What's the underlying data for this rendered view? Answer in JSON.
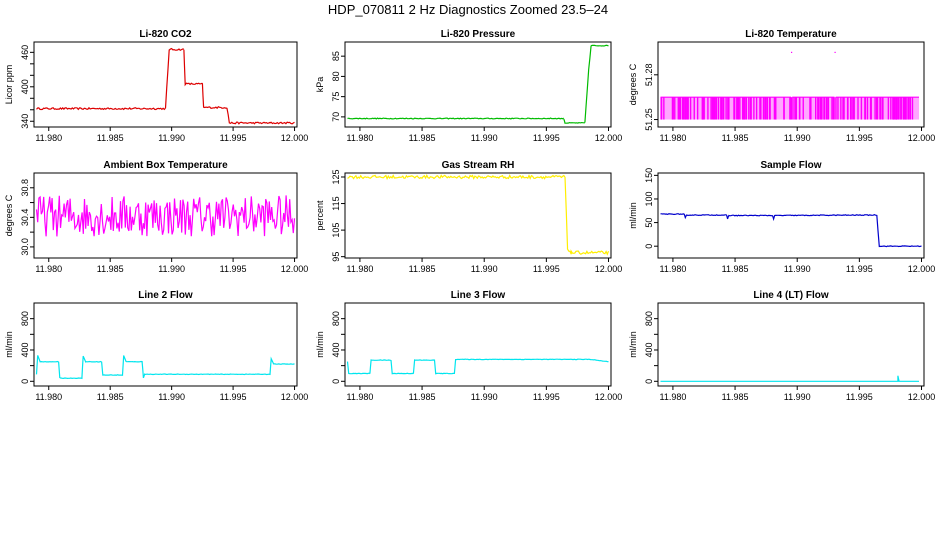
{
  "figure": {
    "title": "HDP_070811  2 Hz Diagnostics Zoomed 23.5–24"
  },
  "chart_data": [
    {
      "type": "line",
      "title": "Li-820 CO2",
      "ylabel": "Licor ppm",
      "color": "#dd0000",
      "xlim": [
        11.9788,
        12.0002
      ],
      "ylim": [
        330,
        478
      ],
      "xticks": [
        11.98,
        11.985,
        11.99,
        11.995,
        12.0
      ],
      "xtick_labels": [
        "11.980",
        "11.985",
        "11.990",
        "11.995",
        "12.000"
      ],
      "yticks": [
        340,
        400,
        460
      ],
      "ytick_labels": [
        "340",
        "400",
        "460"
      ],
      "yticks_minor": [
        360,
        380,
        420,
        440
      ],
      "segments": [
        [
          [
            11.979,
            362
          ],
          [
            11.9895,
            362
          ]
        ],
        [
          [
            11.9895,
            362
          ],
          [
            11.9898,
            465
          ],
          [
            11.991,
            465
          ]
        ],
        [
          [
            11.991,
            465
          ],
          [
            11.9911,
            405
          ],
          [
            11.9925,
            405
          ]
        ],
        [
          [
            11.9925,
            405
          ],
          [
            11.9926,
            364
          ],
          [
            11.9945,
            364
          ]
        ],
        [
          [
            11.9945,
            364
          ],
          [
            11.9947,
            337
          ],
          [
            11.9979,
            337
          ]
        ],
        [
          [
            11.9979,
            337
          ],
          [
            11.998,
            337
          ],
          [
            12.0,
            337
          ]
        ]
      ],
      "noise": 1.5
    },
    {
      "type": "line",
      "title": "Li-820 Pressure",
      "ylabel": "kPa",
      "color": "#00bb00",
      "xlim": [
        11.9788,
        12.0002
      ],
      "ylim": [
        67.5,
        88.5
      ],
      "xticks": [
        11.98,
        11.985,
        11.99,
        11.995,
        12.0
      ],
      "xtick_labels": [
        "11.980",
        "11.985",
        "11.990",
        "11.995",
        "12.000"
      ],
      "yticks": [
        70,
        75,
        80,
        85
      ],
      "ytick_labels": [
        "70",
        "75",
        "80",
        "85"
      ],
      "segments": [
        [
          [
            11.979,
            69.6
          ],
          [
            11.9964,
            69.6
          ]
        ],
        [
          [
            11.9964,
            69.6
          ],
          [
            11.9965,
            68.5
          ],
          [
            11.9981,
            68.5
          ]
        ],
        [
          [
            11.9981,
            68.5
          ],
          [
            11.9984,
            81.5
          ],
          [
            11.9986,
            87.6
          ],
          [
            12.0,
            87.6
          ]
        ]
      ],
      "noise": 0.1
    },
    {
      "type": "line",
      "title": "Li-820 Temperature",
      "ylabel": "degrees C",
      "color": "#ff00ff",
      "xlim": [
        11.9788,
        12.0002
      ],
      "ylim": [
        51.245,
        51.302
      ],
      "xticks": [
        11.98,
        11.985,
        11.99,
        11.995,
        12.0
      ],
      "xtick_labels": [
        "11.980",
        "11.985",
        "11.990",
        "11.995",
        "12.000"
      ],
      "yticks": [
        51.25,
        51.28
      ],
      "ytick_labels": [
        "51.25",
        "51.28"
      ],
      "segments": [
        [
          [
            11.979,
            51.265
          ],
          [
            11.9895,
            51.265
          ]
        ],
        [
          [
            11.9895,
            51.295
          ],
          [
            11.9896,
            51.295
          ]
        ],
        [
          [
            11.9896,
            51.265
          ],
          [
            11.993,
            51.265
          ]
        ],
        [
          [
            11.993,
            51.295
          ],
          [
            11.9931,
            51.295
          ]
        ],
        [
          [
            11.9931,
            51.265
          ],
          [
            11.9998,
            51.265
          ]
        ]
      ],
      "noise": 0.0
    },
    {
      "type": "line",
      "title": "Ambient Box Temperature",
      "ylabel": "degrees C",
      "color": "#ff00ff",
      "xlim": [
        11.9788,
        12.0002
      ],
      "ylim": [
        29.85,
        31.0
      ],
      "xticks": [
        11.98,
        11.985,
        11.99,
        11.995,
        12.0
      ],
      "xtick_labels": [
        "11.980",
        "11.985",
        "11.990",
        "11.995",
        "12.000"
      ],
      "yticks": [
        30.0,
        30.4,
        30.8
      ],
      "ytick_labels": [
        "30.0",
        "30.4",
        "30.8"
      ],
      "yticks_minor": [
        30.2,
        30.6
      ],
      "segments": [
        [
          [
            11.979,
            30.42
          ],
          [
            12.0,
            30.42
          ]
        ]
      ],
      "noise": 0.28
    },
    {
      "type": "line",
      "title": "Gas Stream RH",
      "ylabel": "percent",
      "color": "#ffee00",
      "xlim": [
        11.9788,
        12.0002
      ],
      "ylim": [
        94.5,
        126.5
      ],
      "xticks": [
        11.98,
        11.985,
        11.99,
        11.995,
        12.0
      ],
      "xtick_labels": [
        "11.980",
        "11.985",
        "11.990",
        "11.995",
        "12.000"
      ],
      "yticks": [
        95,
        105,
        115,
        125
      ],
      "ytick_labels": [
        "95",
        "105",
        "115",
        "125"
      ],
      "segments": [
        [
          [
            11.979,
            125
          ],
          [
            11.9965,
            125
          ]
        ],
        [
          [
            11.9965,
            125
          ],
          [
            11.9967,
            98
          ],
          [
            11.997,
            96.5
          ],
          [
            12.0,
            96.5
          ]
        ]
      ],
      "noise": 0.6
    },
    {
      "type": "line",
      "title": "Sample Flow",
      "ylabel": "ml/min",
      "color": "#0000cc",
      "xlim": [
        11.9788,
        12.0002
      ],
      "ylim": [
        -25,
        155
      ],
      "xticks": [
        11.98,
        11.985,
        11.99,
        11.995,
        12.0
      ],
      "xtick_labels": [
        "11.980",
        "11.985",
        "11.990",
        "11.995",
        "12.000"
      ],
      "yticks": [
        0,
        50,
        100,
        150
      ],
      "ytick_labels": [
        "0",
        "50",
        "100",
        "150"
      ],
      "segments": [
        [
          [
            11.979,
            68
          ],
          [
            11.9809,
            68
          ],
          [
            11.981,
            60
          ],
          [
            11.9811,
            66
          ],
          [
            11.9843,
            66
          ],
          [
            11.9844,
            58
          ],
          [
            11.9845,
            65
          ],
          [
            11.988,
            65
          ],
          [
            11.9881,
            58
          ],
          [
            11.9882,
            65
          ],
          [
            11.9964,
            66
          ]
        ],
        [
          [
            11.9964,
            66
          ],
          [
            11.9966,
            0
          ],
          [
            12.0,
            0
          ]
        ]
      ],
      "noise": 0.8
    },
    {
      "type": "line",
      "title": "Line 2 Flow",
      "ylabel": "ml/min",
      "color": "#00e5ee",
      "xlim": [
        11.9788,
        12.0002
      ],
      "ylim": [
        -60,
        1000
      ],
      "xticks": [
        11.98,
        11.985,
        11.99,
        11.995,
        12.0
      ],
      "xtick_labels": [
        "11.980",
        "11.985",
        "11.990",
        "11.995",
        "12.000"
      ],
      "yticks": [
        0,
        400,
        800
      ],
      "ytick_labels": [
        "0",
        "400",
        "800"
      ],
      "yticks_minor": [
        200,
        600
      ],
      "segments": [
        [
          [
            11.979,
            90
          ],
          [
            11.9791,
            330
          ],
          [
            11.9793,
            250
          ],
          [
            11.9808,
            250
          ],
          [
            11.9809,
            40
          ],
          [
            11.9827,
            40
          ],
          [
            11.9828,
            320
          ],
          [
            11.983,
            250
          ],
          [
            11.9843,
            250
          ],
          [
            11.9844,
            80
          ],
          [
            11.986,
            80
          ],
          [
            11.9861,
            330
          ],
          [
            11.9863,
            250
          ],
          [
            11.9876,
            250
          ],
          [
            11.9877,
            45
          ],
          [
            11.9878,
            90
          ],
          [
            11.998,
            90
          ],
          [
            11.9981,
            290
          ],
          [
            11.9983,
            220
          ],
          [
            12.0,
            220
          ]
        ]
      ],
      "noise": 3
    },
    {
      "type": "line",
      "title": "Line 3 Flow",
      "ylabel": "ml/min",
      "color": "#00e5ee",
      "xlim": [
        11.9788,
        12.0002
      ],
      "ylim": [
        -60,
        1000
      ],
      "xticks": [
        11.98,
        11.985,
        11.99,
        11.995,
        12.0
      ],
      "xtick_labels": [
        "11.980",
        "11.985",
        "11.990",
        "11.995",
        "12.000"
      ],
      "yticks": [
        0,
        400,
        800
      ],
      "ytick_labels": [
        "0",
        "400",
        "800"
      ],
      "yticks_minor": [
        200,
        600
      ],
      "segments": [
        [
          [
            11.979,
            250
          ],
          [
            11.9791,
            100
          ],
          [
            11.9808,
            100
          ],
          [
            11.9809,
            270
          ],
          [
            11.9825,
            270
          ],
          [
            11.9826,
            100
          ],
          [
            11.9843,
            100
          ],
          [
            11.9844,
            270
          ],
          [
            11.986,
            270
          ],
          [
            11.9861,
            100
          ],
          [
            11.9876,
            100
          ],
          [
            11.9877,
            280
          ],
          [
            11.9985,
            280
          ],
          [
            12.0,
            250
          ]
        ]
      ],
      "noise": 3
    },
    {
      "type": "line",
      "title": "Line 4 (LT) Flow",
      "ylabel": "ml/min",
      "color": "#00e5ee",
      "xlim": [
        11.9788,
        12.0002
      ],
      "ylim": [
        -60,
        1000
      ],
      "xticks": [
        11.98,
        11.985,
        11.99,
        11.995,
        12.0
      ],
      "xtick_labels": [
        "11.980",
        "11.985",
        "11.990",
        "11.995",
        "12.000"
      ],
      "yticks": [
        0,
        400,
        800
      ],
      "ytick_labels": [
        "0",
        "400",
        "800"
      ],
      "yticks_minor": [
        200,
        600
      ],
      "segments": [
        [
          [
            11.979,
            0
          ],
          [
            11.9981,
            0
          ],
          [
            11.9981,
            70
          ],
          [
            11.9982,
            0
          ],
          [
            11.9998,
            0
          ]
        ]
      ],
      "noise": 0
    }
  ]
}
